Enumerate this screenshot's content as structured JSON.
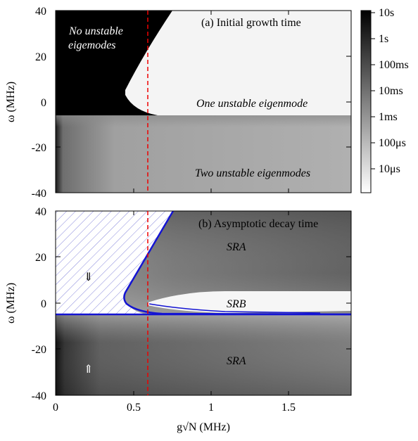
{
  "chart_data": [
    {
      "type": "heatmap",
      "title": "(a) Initial growth time",
      "xlabel": "g√N (MHz)",
      "ylabel": "ω (MHz)",
      "xlim": [
        0,
        1.9
      ],
      "ylim": [
        -40,
        40
      ],
      "yticks": [
        "40",
        "20",
        "0",
        "-20",
        "-40"
      ],
      "colorbar": {
        "scale": "log",
        "ticks": [
          "10s",
          "1s",
          "100ms",
          "10ms",
          "1ms",
          "100μs",
          "10μs"
        ]
      },
      "annotations": [
        "No unstable",
        "eigemodes",
        "One unstable eigenmode",
        "Two unstable eigenmodes"
      ],
      "vline_x": 0.6,
      "boundary_omega": -5
    },
    {
      "type": "heatmap",
      "title": "(b) Asymptotic decay time",
      "xlabel": "g√N (MHz)",
      "ylabel": "ω (MHz)",
      "xlim": [
        0,
        1.9
      ],
      "ylim": [
        -40,
        40
      ],
      "xticks": [
        "0",
        "0.5",
        "1",
        "1.5"
      ],
      "yticks": [
        "40",
        "20",
        "0",
        "-20",
        "-40"
      ],
      "annotations": [
        "SRA",
        "SRB",
        "SRA"
      ],
      "arrows": [
        "⇓",
        "⇑"
      ],
      "vline_x": 0.6,
      "boundary_omega": -5
    }
  ]
}
